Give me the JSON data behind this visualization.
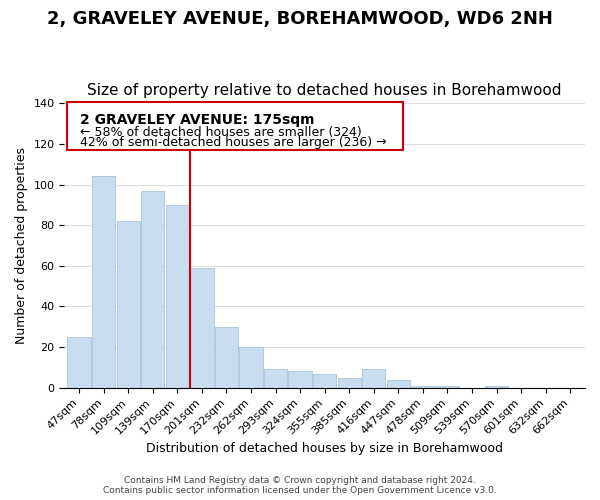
{
  "title": "2, GRAVELEY AVENUE, BOREHAMWOOD, WD6 2NH",
  "subtitle": "Size of property relative to detached houses in Borehamwood",
  "xlabel": "Distribution of detached houses by size in Borehamwood",
  "ylabel": "Number of detached properties",
  "bar_labels": [
    "47sqm",
    "78sqm",
    "109sqm",
    "139sqm",
    "170sqm",
    "201sqm",
    "232sqm",
    "262sqm",
    "293sqm",
    "324sqm",
    "355sqm",
    "385sqm",
    "416sqm",
    "447sqm",
    "478sqm",
    "509sqm",
    "539sqm",
    "570sqm",
    "601sqm",
    "632sqm",
    "662sqm"
  ],
  "bar_values": [
    25,
    104,
    82,
    97,
    90,
    59,
    30,
    20,
    9,
    8,
    7,
    5,
    9,
    4,
    1,
    1,
    0,
    1,
    0,
    0,
    0
  ],
  "bar_color": "#c8ddf0",
  "bar_edge_color": "#a0bdd4",
  "vline_x": 4.5,
  "vline_color": "#cc0000",
  "ylim": [
    0,
    140
  ],
  "annotation_title": "2 GRAVELEY AVENUE: 175sqm",
  "annotation_line1": "← 58% of detached houses are smaller (324)",
  "annotation_line2": "42% of semi-detached houses are larger (236) →",
  "annotation_box_color": "#ffffff",
  "annotation_box_edge_color": "#cc0000",
  "footer_line1": "Contains HM Land Registry data © Crown copyright and database right 2024.",
  "footer_line2": "Contains public sector information licensed under the Open Government Licence v3.0.",
  "title_fontsize": 13,
  "subtitle_fontsize": 11,
  "annotation_title_fontsize": 10,
  "annotation_text_fontsize": 9,
  "tick_fontsize": 8
}
